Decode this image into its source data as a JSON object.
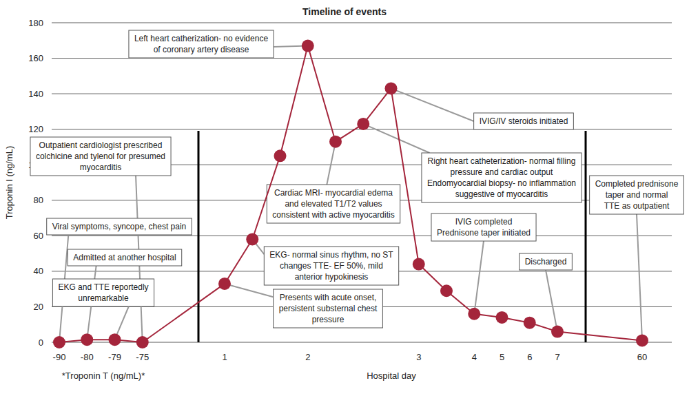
{
  "chart_data": {
    "type": "line",
    "title": "Timeline of events",
    "y_label": "Troponin I (ng/mL)",
    "x_label": "Hospital day",
    "x_note": "*Troponin T (ng/mL)*",
    "categories": [
      "-90",
      "-80",
      "-79",
      "-75",
      "1",
      null,
      null,
      "2",
      null,
      null,
      null,
      "3",
      null,
      "4",
      "5",
      "6",
      "7",
      "60"
    ],
    "values": [
      0,
      1.5,
      1.5,
      0,
      33,
      58,
      105,
      167,
      113,
      123,
      143,
      44,
      29,
      16,
      14,
      11,
      6,
      1
    ],
    "color": "#a4253b",
    "marker": "circle",
    "ylim": [
      0,
      180
    ],
    "yticks": [
      0,
      20,
      40,
      60,
      80,
      100,
      120,
      140,
      160,
      180
    ],
    "grid": true,
    "annotations": [
      {
        "point": 0,
        "lines": [
          "Viral symptoms, syncope, chest pain"
        ]
      },
      {
        "point": 1,
        "lines": [
          "Admitted at another hospital"
        ]
      },
      {
        "point": 2,
        "lines": [
          "EKG and TTE reportedly",
          "unremarkable"
        ]
      },
      {
        "point": 3,
        "lines": [
          "Outpatient cardiologist prescribed",
          "colchicine and tylenol for presumed",
          "myocarditis"
        ]
      },
      {
        "point": 4,
        "lines": [
          "Presents with acute onset,",
          "persistent substernal chest",
          "pressure"
        ]
      },
      {
        "point": 5,
        "lines": [
          "EKG- normal sinus rhythm, no ST",
          "changes TTE- EF 50%, mild",
          "anterior hypokinesis"
        ]
      },
      {
        "point": 7,
        "lines": [
          "Left heart catherization- no evidence",
          "of coronary artery disease"
        ]
      },
      {
        "point": 8,
        "lines": [
          "Cardiac MRI- myocardial edema",
          "and elevated T1/T2 values",
          "consistent with active myocarditis"
        ]
      },
      {
        "point": 9,
        "lines": [
          "Right heart catheterization- normal filling",
          "pressure and cardiac output",
          "Endomyocardial biopsy- no inflammation",
          "suggestive of myocarditis"
        ]
      },
      {
        "point": 10,
        "lines": [
          "IVIG/IV steroids initiated"
        ]
      },
      {
        "point": 13,
        "lines": [
          "IVIG completed",
          "Prednisone taper initiated"
        ]
      },
      {
        "point": 16,
        "lines": [
          "Discharged"
        ]
      },
      {
        "point": 17,
        "lines": [
          "Completed prednisone",
          "taper and normal",
          "TTE as outpatient"
        ]
      }
    ]
  }
}
